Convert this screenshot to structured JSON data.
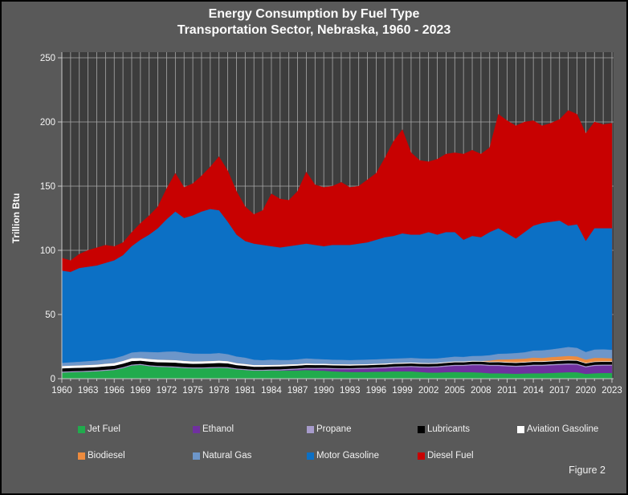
{
  "title": {
    "line1": "Energy Consumption by Fuel Type",
    "line2": "Transportation Sector, Nebraska, 1960 - 2023"
  },
  "figure_label": "Figure 2",
  "colors": {
    "outer_bg": "#595959",
    "plot_bg": "#3D3D3D",
    "grid": "#A9A9A9",
    "axis": "#C9C9C9",
    "text": "#F5F5F5"
  },
  "chart_data": {
    "type": "area",
    "stacked": true,
    "title": "Energy Consumption by Fuel Type — Transportation Sector, Nebraska, 1960 - 2023",
    "ylabel": "Trillion Btu",
    "xlabel": "",
    "ylim": [
      0,
      250
    ],
    "grid": "on",
    "legend_position": "bottom",
    "y_ticks": [
      0,
      50,
      100,
      150,
      200,
      250
    ],
    "x_tick_years": [
      1960,
      1963,
      1966,
      1969,
      1972,
      1975,
      1978,
      1981,
      1984,
      1987,
      1990,
      1993,
      1996,
      1999,
      2002,
      2005,
      2008,
      2011,
      2014,
      2017,
      2020,
      2023
    ],
    "x": [
      1960,
      1961,
      1962,
      1963,
      1964,
      1965,
      1966,
      1967,
      1968,
      1969,
      1970,
      1971,
      1972,
      1973,
      1974,
      1975,
      1976,
      1977,
      1978,
      1979,
      1980,
      1981,
      1982,
      1983,
      1984,
      1985,
      1986,
      1987,
      1988,
      1989,
      1990,
      1991,
      1992,
      1993,
      1994,
      1995,
      1996,
      1997,
      1998,
      1999,
      2000,
      2001,
      2002,
      2003,
      2004,
      2005,
      2006,
      2007,
      2008,
      2009,
      2010,
      2011,
      2012,
      2013,
      2014,
      2015,
      2016,
      2017,
      2018,
      2019,
      2020,
      2021,
      2022,
      2023
    ],
    "series": [
      {
        "name": "Jet Fuel",
        "color": "#21AB4D",
        "values": [
          4.5,
          4.8,
          5.0,
          5.2,
          5.5,
          6.0,
          6.5,
          8.0,
          10.0,
          10.5,
          9.5,
          9.0,
          8.8,
          8.5,
          8.0,
          7.8,
          7.8,
          8.0,
          8.2,
          8.0,
          7.0,
          6.5,
          6.0,
          6.0,
          6.2,
          6.0,
          6.2,
          6.2,
          6.5,
          6.2,
          6.0,
          5.5,
          5.2,
          5.0,
          5.0,
          5.0,
          5.2,
          5.2,
          5.5,
          5.5,
          5.5,
          5.0,
          4.5,
          4.5,
          4.8,
          5.0,
          4.8,
          4.8,
          4.5,
          4.0,
          4.0,
          3.8,
          3.6,
          3.8,
          4.0,
          4.0,
          4.2,
          4.5,
          4.8,
          4.8,
          3.5,
          4.0,
          4.2,
          4.2
        ]
      },
      {
        "name": "Ethanol",
        "color": "#7030A0",
        "values": [
          0,
          0,
          0,
          0,
          0,
          0,
          0,
          0,
          0,
          0,
          0,
          0,
          0,
          0,
          0,
          0,
          0,
          0,
          0,
          0,
          0,
          0,
          0,
          0,
          0,
          0.3,
          0.5,
          0.8,
          1.0,
          1.2,
          1.5,
          1.8,
          2.0,
          2.2,
          2.4,
          2.5,
          2.6,
          2.8,
          3.0,
          3.2,
          3.4,
          3.6,
          4.0,
          4.2,
          4.5,
          4.8,
          5.0,
          5.5,
          5.8,
          5.8,
          5.8,
          5.6,
          5.5,
          5.6,
          5.8,
          5.8,
          6.0,
          6.0,
          6.0,
          5.9,
          5.2,
          5.8,
          5.8,
          5.8
        ]
      },
      {
        "name": "Propane",
        "color": "#A79BCB",
        "values": [
          0.8,
          0.8,
          0.8,
          0.8,
          0.8,
          0.8,
          0.8,
          0.8,
          0.8,
          0.8,
          0.8,
          0.8,
          0.8,
          0.8,
          0.8,
          0.8,
          0.8,
          0.8,
          0.8,
          0.8,
          0.8,
          0.8,
          0.8,
          0.8,
          0.8,
          0.8,
          0.8,
          0.8,
          0.8,
          0.8,
          0.8,
          0.8,
          0.8,
          0.8,
          0.8,
          0.8,
          0.8,
          0.8,
          0.8,
          0.8,
          0.8,
          0.8,
          0.8,
          0.8,
          0.8,
          0.8,
          0.8,
          0.8,
          0.8,
          0.8,
          0.8,
          0.8,
          0.8,
          0.8,
          0.9,
          0.9,
          0.9,
          0.9,
          0.9,
          0.8,
          0.8,
          0.8,
          0.8,
          0.8
        ]
      },
      {
        "name": "Lubricants",
        "color": "#000000",
        "values": [
          2.5,
          2.5,
          2.5,
          2.5,
          2.5,
          2.6,
          2.6,
          2.7,
          2.7,
          2.5,
          2.8,
          2.8,
          2.9,
          3.0,
          2.9,
          2.8,
          2.9,
          2.9,
          3.0,
          2.9,
          2.6,
          2.5,
          2.3,
          2.3,
          2.3,
          2.3,
          2.2,
          2.2,
          2.2,
          2.2,
          2.1,
          2.1,
          2.1,
          2.0,
          2.0,
          2.0,
          2.0,
          2.0,
          2.0,
          2.0,
          2.0,
          2.0,
          2.0,
          2.0,
          2.0,
          2.0,
          2.0,
          2.0,
          2.0,
          2.0,
          2.1,
          2.1,
          2.2,
          2.2,
          2.2,
          2.2,
          2.2,
          2.3,
          2.3,
          2.3,
          2.2,
          2.2,
          2.2,
          2.2
        ]
      },
      {
        "name": "Aviation Gasoline",
        "color": "#FFFFFF",
        "values": [
          1.8,
          1.8,
          1.8,
          1.9,
          1.9,
          2.0,
          2.0,
          2.1,
          2.2,
          2.0,
          2.0,
          2.0,
          1.9,
          1.9,
          1.9,
          1.8,
          1.8,
          1.8,
          1.8,
          1.7,
          1.5,
          1.4,
          1.3,
          1.3,
          1.2,
          1.2,
          1.2,
          1.1,
          1.1,
          1.0,
          1.0,
          0.9,
          0.9,
          0.9,
          0.8,
          0.8,
          0.8,
          0.8,
          0.7,
          0.7,
          0.7,
          0.7,
          0.6,
          0.6,
          0.6,
          0.6,
          0.6,
          0.6,
          0.5,
          0.5,
          0.5,
          0.5,
          0.5,
          0.5,
          0.5,
          0.5,
          0.5,
          0.5,
          0.5,
          0.5,
          0.4,
          0.4,
          0.4,
          0.4
        ]
      },
      {
        "name": "Biodiesel",
        "color": "#ED8B3E",
        "values": [
          0,
          0,
          0,
          0,
          0,
          0,
          0,
          0,
          0,
          0,
          0,
          0,
          0,
          0,
          0,
          0,
          0,
          0,
          0,
          0,
          0,
          0,
          0,
          0,
          0,
          0,
          0,
          0,
          0,
          0,
          0,
          0,
          0,
          0,
          0,
          0,
          0,
          0,
          0,
          0,
          0,
          0,
          0,
          0,
          0,
          0,
          0,
          0,
          0,
          0.8,
          1.5,
          2.0,
          2.5,
          2.5,
          2.8,
          2.5,
          2.8,
          2.8,
          3.0,
          2.8,
          2.5,
          2.8,
          2.5,
          2.2
        ]
      },
      {
        "name": "Natural Gas",
        "color": "#6D96C9",
        "values": [
          2.5,
          2.7,
          2.9,
          3.1,
          3.3,
          3.5,
          3.8,
          4.0,
          4.5,
          5.0,
          5.5,
          5.8,
          6.5,
          6.8,
          6.5,
          6.2,
          6.0,
          5.8,
          6.0,
          5.5,
          5.2,
          5.0,
          4.2,
          3.8,
          4.2,
          3.8,
          3.5,
          3.8,
          4.0,
          3.8,
          3.5,
          3.5,
          3.5,
          3.4,
          3.5,
          3.6,
          3.5,
          3.6,
          3.5,
          3.5,
          3.6,
          3.5,
          3.6,
          3.5,
          3.6,
          3.8,
          3.6,
          3.8,
          4.0,
          4.2,
          4.5,
          4.6,
          4.7,
          5.0,
          5.5,
          6.0,
          6.0,
          6.5,
          7.0,
          6.7,
          6.0,
          6.5,
          6.8,
          6.7
        ]
      },
      {
        "name": "Motor Gasoline",
        "color": "#0C70C5",
        "values": [
          71.9,
          70.4,
          73.0,
          73.5,
          74.0,
          75.1,
          76.3,
          78.4,
          82.8,
          87.2,
          91.4,
          96.6,
          103.1,
          109.0,
          104.9,
          107.6,
          110.7,
          112.7,
          111.2,
          103.1,
          94.9,
          90.8,
          90.4,
          89.8,
          88.3,
          87.6,
          88.6,
          89.1,
          89.4,
          88.8,
          88.1,
          89.4,
          89.5,
          89.7,
          90.5,
          91.3,
          93.1,
          94.8,
          95.5,
          97.3,
          96.0,
          96.4,
          98.5,
          96.4,
          97.7,
          97.0,
          91.2,
          93.5,
          92.4,
          95.9,
          97.8,
          93.6,
          89.2,
          93.6,
          97.3,
          99.1,
          99.4,
          99.5,
          94.5,
          96.2,
          86.4,
          94.5,
          94.3,
          94.7
        ]
      },
      {
        "name": "Diesel Fuel",
        "color": "#C80101",
        "values": [
          10,
          9,
          11,
          13,
          14,
          14,
          11,
          10,
          11,
          13,
          15,
          17,
          24,
          30,
          24,
          25,
          28,
          33,
          42,
          40,
          34,
          27,
          23,
          27,
          41,
          38,
          36,
          42,
          56,
          47,
          46,
          46,
          49,
          45,
          45,
          49,
          52,
          62,
          74,
          81,
          64,
          58,
          55,
          59,
          61,
          62,
          67,
          67,
          65,
          66,
          89,
          88,
          88,
          86,
          82,
          76,
          77,
          79,
          90,
          86,
          84,
          83,
          81,
          82
        ]
      }
    ]
  }
}
